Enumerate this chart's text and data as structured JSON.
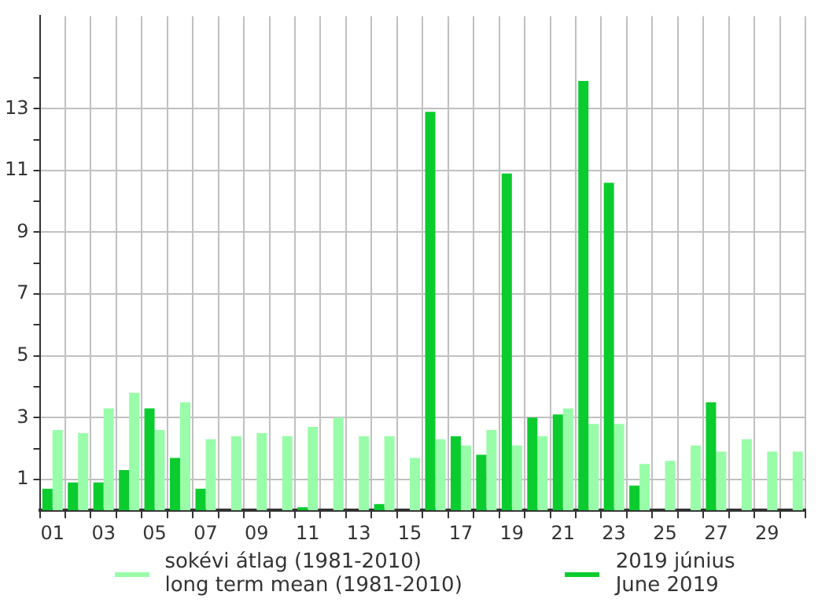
{
  "chart_data": {
    "type": "bar",
    "categories": [
      "01",
      null,
      "03",
      null,
      "05",
      null,
      "07",
      null,
      "09",
      null,
      "11",
      null,
      "13",
      null,
      "15",
      null,
      "17",
      null,
      "19",
      null,
      "21",
      null,
      "23",
      null,
      "25",
      null,
      "27",
      null,
      "29",
      null
    ],
    "series": [
      {
        "name": "sokévi átlag (1981-2010)\nlong term mean (1981-2010)",
        "color": "#99fca9",
        "values": [
          2.6,
          2.5,
          3.3,
          3.8,
          2.6,
          3.5,
          2.3,
          2.4,
          2.5,
          2.4,
          2.7,
          3.0,
          2.4,
          2.4,
          1.7,
          2.3,
          2.1,
          2.6,
          2.1,
          2.4,
          3.3,
          2.8,
          2.8,
          1.5,
          1.6,
          2.1,
          1.9,
          2.3,
          1.9,
          1.9
        ]
      },
      {
        "name": "2019 június\nJune 2019",
        "color": "#0acc2e",
        "values": [
          0.7,
          0.9,
          0.9,
          1.3,
          3.3,
          1.7,
          0.7,
          0,
          0,
          0,
          0.1,
          0,
          0,
          0.2,
          0,
          12.9,
          2.4,
          1.8,
          10.9,
          3.0,
          3.1,
          13.9,
          10.6,
          0.8,
          0,
          0,
          3.5,
          0,
          0,
          0
        ]
      }
    ],
    "ylim": [
      0,
      16
    ],
    "yticks": [
      1,
      {
        "value": 2,
        "label": null
      },
      3,
      {
        "value": 4,
        "label": null
      },
      5,
      {
        "value": 6,
        "label": null
      },
      7,
      {
        "value": 8,
        "label": null
      },
      9,
      {
        "value": 10,
        "label": null
      },
      11,
      {
        "value": 12,
        "label": null
      },
      13,
      {
        "value": 14,
        "label": null
      }
    ],
    "grid": true,
    "legend": "bottom"
  }
}
